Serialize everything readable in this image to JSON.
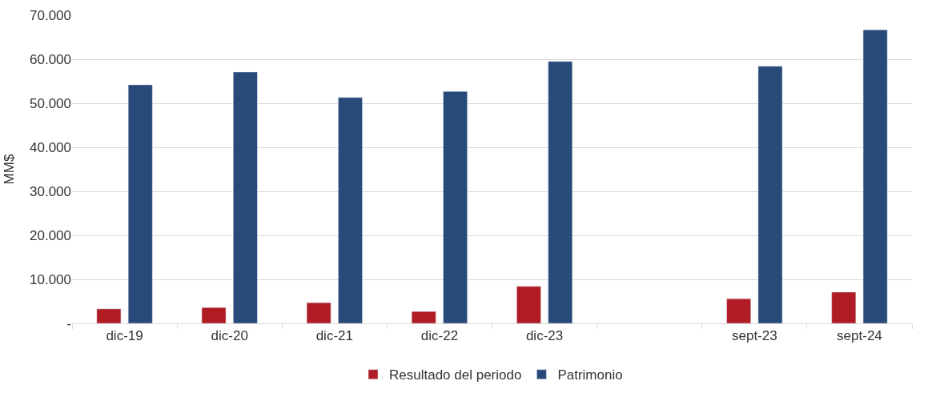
{
  "chart_data": {
    "type": "bar",
    "ylabel": "MM$",
    "categories": [
      "dic-19",
      "dic-20",
      "dic-21",
      "dic-22",
      "dic-23",
      null,
      "sept-23",
      "sept-24"
    ],
    "series": [
      {
        "name": "Resultado del periodo",
        "color": "#b01c24",
        "values": [
          3300,
          3600,
          4700,
          2700,
          8400,
          null,
          5600,
          7100
        ]
      },
      {
        "name": "Patrimonio",
        "color": "#284a78",
        "values": [
          54200,
          57100,
          51300,
          52700,
          59500,
          null,
          58400,
          66700
        ]
      }
    ],
    "ylim": [
      0,
      70000
    ],
    "yticks": [
      {
        "value": 0,
        "label": "-"
      },
      {
        "value": 10000,
        "label": "10.000"
      },
      {
        "value": 20000,
        "label": "20.000"
      },
      {
        "value": 30000,
        "label": "30.000"
      },
      {
        "value": 40000,
        "label": "40.000"
      },
      {
        "value": 50000,
        "label": "50.000"
      },
      {
        "value": 60000,
        "label": "60.000"
      },
      {
        "value": 70000,
        "label": "70.000"
      }
    ],
    "grid": "y",
    "legend": "bottom"
  }
}
